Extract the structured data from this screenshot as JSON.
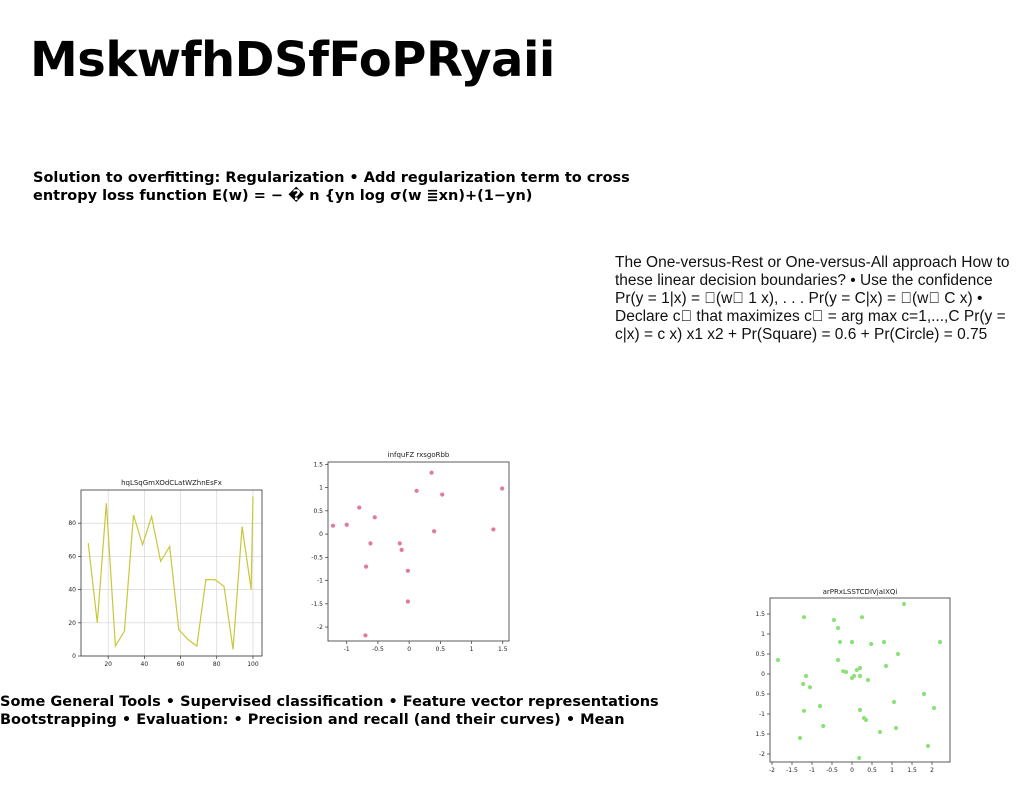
{
  "title": "MskwfhDSfFoPRyaii",
  "para1": "Solution to overfitting: Regularization • Add regularization term to cross entropy loss function E(w) = − � n {yn log σ(w ≣xn)+(1−yn)",
  "para2": "The One-versus-Rest or One-versus-All approach How to these linear decision boundaries? • Use the confidence Pr(y = 1|x) = \u0000(w\u0000 1 x), . . . Pr(y = C|x) = \u0000(w\u0000 C x) • Declare c\u0000 that maximizes c\u0000 = arg max c=1,...,C Pr(y = c|x) = c x) x1 x2 + Pr(Square) = 0.6 + Pr(Circle) = 0.75",
  "para3": "Some General Tools • Supervised classification • Feature vector representations Bootstrapping • Evaluation: • Precision and recall (and their curves) • Mean",
  "chart_data": [
    {
      "type": "line",
      "title": "hqLSqGmXOdCLatWZhnEsFx",
      "color": "#c8c83a",
      "grid": true,
      "xlim": [
        5,
        105
      ],
      "ylim": [
        0,
        100
      ],
      "xticks": [
        20,
        40,
        60,
        80,
        100
      ],
      "yticks": [
        0,
        20,
        40,
        60,
        80
      ],
      "x": [
        9,
        14,
        19,
        24,
        29,
        34,
        39,
        44,
        49,
        54,
        59,
        64,
        69,
        74,
        79,
        84,
        89,
        94,
        99
      ],
      "y": [
        68,
        20,
        92,
        6,
        15,
        85,
        67,
        84,
        57,
        66,
        16,
        10,
        6,
        46,
        46,
        42,
        4,
        78,
        40
      ],
      "y_end": 96
    },
    {
      "type": "scatter",
      "title": "infquFZ rxsgoRbb",
      "color": "#e07a9a",
      "grid": false,
      "xlim": [
        -1.3,
        1.6
      ],
      "ylim": [
        -2.3,
        1.55
      ],
      "xticks": [
        -1.0,
        -0.5,
        0.0,
        0.5,
        1.0,
        1.5
      ],
      "yticks": [
        1.5,
        1.0,
        0.5,
        0.0,
        -0.5,
        -1.0,
        -1.5,
        -2.0
      ],
      "points": [
        [
          -1.22,
          0.18
        ],
        [
          -1.0,
          0.2
        ],
        [
          -0.8,
          0.57
        ],
        [
          -0.55,
          0.36
        ],
        [
          -0.62,
          -0.2
        ],
        [
          -0.69,
          -0.7
        ],
        [
          -0.7,
          -2.18
        ],
        [
          -0.15,
          -0.2
        ],
        [
          -0.12,
          -0.34
        ],
        [
          -0.02,
          -0.79
        ],
        [
          -0.02,
          -1.45
        ],
        [
          0.12,
          0.93
        ],
        [
          0.36,
          1.32
        ],
        [
          0.4,
          0.06
        ],
        [
          0.53,
          0.85
        ],
        [
          1.35,
          0.1
        ],
        [
          1.49,
          0.98
        ]
      ]
    },
    {
      "type": "scatter",
      "title": "arPRxLSSTCDIVjaIXQi",
      "color": "#8de07a",
      "grid": false,
      "xlim": [
        -2.05,
        2.45
      ],
      "ylim": [
        -2.2,
        1.9
      ],
      "xticks": [
        -2.0,
        -1.5,
        -1.0,
        -0.5,
        0.0,
        0.5,
        1.0,
        1.5,
        2.0
      ],
      "yticks": [
        1.5,
        1.0,
        0.5,
        0.0,
        -0.5,
        -1.0,
        -1.5,
        -2.0
      ],
      "points": [
        [
          -1.85,
          0.35
        ],
        [
          -1.2,
          1.42
        ],
        [
          -1.22,
          -0.25
        ],
        [
          -1.15,
          -0.05
        ],
        [
          -1.05,
          -0.33
        ],
        [
          -1.2,
          -0.92
        ],
        [
          -0.8,
          -0.8
        ],
        [
          -1.3,
          -1.6
        ],
        [
          -0.72,
          -1.3
        ],
        [
          -0.45,
          1.35
        ],
        [
          -0.35,
          1.15
        ],
        [
          -0.3,
          0.8
        ],
        [
          -0.35,
          0.35
        ],
        [
          -0.22,
          0.07
        ],
        [
          -0.15,
          0.05
        ],
        [
          0.0,
          0.8
        ],
        [
          0.05,
          -0.05
        ],
        [
          0.12,
          0.1
        ],
        [
          0.2,
          0.15
        ],
        [
          0.25,
          1.42
        ],
        [
          0.2,
          -0.9
        ],
        [
          0.3,
          -1.1
        ],
        [
          0.35,
          -1.15
        ],
        [
          0.4,
          -0.15
        ],
        [
          0.48,
          0.75
        ],
        [
          0.7,
          -1.45
        ],
        [
          0.8,
          0.8
        ],
        [
          0.85,
          0.2
        ],
        [
          1.05,
          -0.7
        ],
        [
          1.1,
          -1.35
        ],
        [
          1.15,
          0.5
        ],
        [
          1.3,
          1.75
        ],
        [
          1.8,
          -0.5
        ],
        [
          1.9,
          -1.8
        ],
        [
          2.05,
          -0.85
        ],
        [
          2.2,
          0.8
        ],
        [
          0.18,
          -2.1
        ],
        [
          0.0,
          -0.1
        ],
        [
          0.2,
          -0.05
        ]
      ]
    }
  ]
}
